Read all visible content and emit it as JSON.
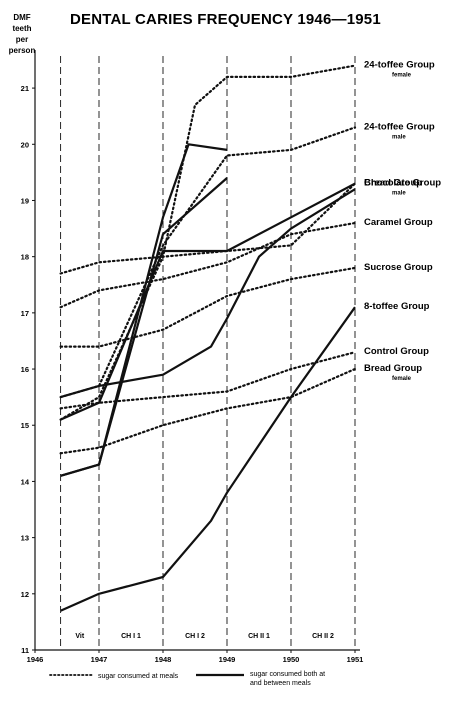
{
  "chart_data": {
    "type": "line",
    "title": "DENTAL CARIES FREQUENCY 1946—1951",
    "ylabel": [
      "DMF",
      "teeth",
      "per",
      "person"
    ],
    "ylim": [
      11,
      21.5
    ],
    "yticks": [
      11,
      12,
      13,
      14,
      15,
      16,
      17,
      18,
      19,
      20,
      21
    ],
    "xlim": [
      1946,
      1951
    ],
    "xticks": [
      "1946",
      "1947",
      "1948",
      "1949",
      "1950",
      "1951"
    ],
    "periods": [
      {
        "label": "Vit",
        "from": 1946.4,
        "to": 1947
      },
      {
        "label": "CH I 1",
        "from": 1947,
        "to": 1948
      },
      {
        "label": "CH I 2",
        "from": 1948,
        "to": 1949
      },
      {
        "label": "CH II 1",
        "from": 1949,
        "to": 1950
      },
      {
        "label": "CH II 2",
        "from": 1950,
        "to": 1951
      }
    ],
    "vertical_lines": [
      1946.4,
      1947,
      1948,
      1949,
      1950,
      1951
    ],
    "legend": {
      "dotted": "sugar consumed at meals",
      "solid": "sugar consumed both at and between meals"
    },
    "series": [
      {
        "name": "24-toffee Group",
        "sub": "female",
        "style": "dotted",
        "points": [
          [
            1946.4,
            15.1
          ],
          [
            1947,
            15.5
          ],
          [
            1948,
            18.0
          ],
          [
            1948.5,
            20.7
          ],
          [
            1949,
            21.2
          ],
          [
            1950,
            21.2
          ],
          [
            1951,
            21.4
          ]
        ]
      },
      {
        "name": "24-toffee Group",
        "sub": "male",
        "style": "dotted",
        "points": [
          [
            1946.4,
            15.5
          ],
          [
            1947,
            15.7
          ],
          [
            1948,
            18.2
          ],
          [
            1949,
            19.8
          ],
          [
            1950,
            19.9
          ],
          [
            1951,
            20.3
          ]
        ]
      },
      {
        "name": "Chocolate Group",
        "sub": "",
        "style": "solid",
        "points": [
          [
            1946.4,
            15.1
          ],
          [
            1947,
            15.4
          ],
          [
            1948,
            18.1
          ],
          [
            1949,
            18.1
          ],
          [
            1950,
            18.7
          ],
          [
            1951,
            19.3
          ]
        ]
      },
      {
        "name": "Bread Group",
        "sub": "male",
        "style": "dotted",
        "points": [
          [
            1946.4,
            17.7
          ],
          [
            1947,
            17.9
          ],
          [
            1948,
            18.0
          ],
          [
            1949,
            18.1
          ],
          [
            1950,
            18.2
          ],
          [
            1951,
            19.3
          ]
        ]
      },
      {
        "name": "Caramel Group",
        "sub": "",
        "style": "dotted",
        "points": [
          [
            1946.4,
            17.1
          ],
          [
            1947,
            17.4
          ],
          [
            1948,
            17.6
          ],
          [
            1949,
            17.9
          ],
          [
            1950,
            18.4
          ],
          [
            1951,
            18.6
          ]
        ]
      },
      {
        "name": "Sucrose Group",
        "sub": "",
        "style": "dotted",
        "points": [
          [
            1946.4,
            16.4
          ],
          [
            1947,
            16.4
          ],
          [
            1948,
            16.7
          ],
          [
            1949,
            17.3
          ],
          [
            1950,
            17.6
          ],
          [
            1951,
            17.8
          ]
        ]
      },
      {
        "name": "8-toffee Group",
        "sub": "",
        "style": "solid",
        "points": [
          [
            1946.4,
            11.7
          ],
          [
            1947,
            12.0
          ],
          [
            1948,
            12.3
          ],
          [
            1948.75,
            13.3
          ],
          [
            1949,
            13.8
          ],
          [
            1950,
            15.5
          ],
          [
            1951,
            17.1
          ]
        ]
      },
      {
        "name": "Control Group",
        "sub": "",
        "style": "dotted",
        "points": [
          [
            1946.4,
            15.3
          ],
          [
            1947,
            15.4
          ],
          [
            1948,
            15.5
          ],
          [
            1949,
            15.6
          ],
          [
            1950,
            16.0
          ],
          [
            1951,
            16.3
          ]
        ]
      },
      {
        "name": "Bread Group",
        "sub": "female",
        "style": "dotted",
        "points": [
          [
            1946.4,
            14.5
          ],
          [
            1947,
            14.6
          ],
          [
            1948,
            15.0
          ],
          [
            1949,
            15.3
          ],
          [
            1950,
            15.5
          ],
          [
            1951,
            16.0
          ]
        ]
      },
      {
        "name": "",
        "sub": "",
        "style": "solid",
        "label": false,
        "points": [
          [
            1946.4,
            14.1
          ],
          [
            1947,
            14.3
          ],
          [
            1948,
            18.4
          ],
          [
            1949,
            19.4
          ]
        ]
      },
      {
        "name": "",
        "sub": "",
        "style": "solid",
        "label": false,
        "points": [
          [
            1946.4,
            14.1
          ],
          [
            1947,
            14.3
          ],
          [
            1948,
            18.7
          ],
          [
            1948.4,
            20.0
          ],
          [
            1949,
            19.9
          ]
        ]
      },
      {
        "name": "",
        "sub": "",
        "style": "solid",
        "label": false,
        "points": [
          [
            1946.4,
            15.5
          ],
          [
            1947,
            15.7
          ],
          [
            1948,
            15.9
          ],
          [
            1948.75,
            16.4
          ],
          [
            1949,
            16.9
          ],
          [
            1949.5,
            18.0
          ],
          [
            1950,
            18.5
          ],
          [
            1951,
            19.2
          ]
        ]
      }
    ]
  }
}
